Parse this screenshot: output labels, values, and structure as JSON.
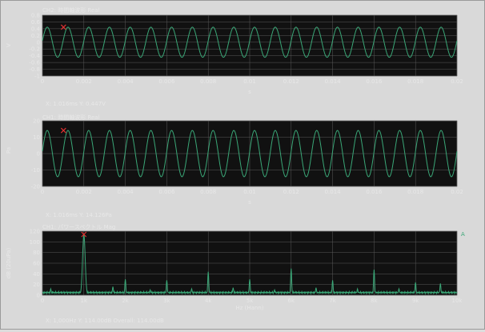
{
  "panels": [
    {
      "title": "CH2: 時間軸波形 Real",
      "ylabel": "V",
      "xlabel": "s",
      "cursor_readout": "X: 1.016ms  Y: 0.447V"
    },
    {
      "title": "CH1: 時間軸波形 Real",
      "ylabel": "Pa",
      "xlabel": "s",
      "cursor_readout": "X: 1.016ms  Y: 14.126Pa"
    },
    {
      "title": "CH1: パワースペクトル Mag",
      "ylabel": "dB (20uPa)",
      "xlabel": "Hz (Hann)",
      "cursor_readout": "X: 1,000Hz  Y: 114.00dB   Overall: 114.00dB",
      "top_right_marker": "A"
    }
  ],
  "colors": {
    "trace": "#3aa777",
    "cursor": "#e03030",
    "plot_bg": "#111111",
    "grid": "#5a5a5a",
    "text": "#e8e8e8"
  },
  "chart_data": [
    {
      "type": "line",
      "title": "CH2: 時間軸波形 Real",
      "xlabel": "s",
      "ylabel": "V",
      "xlim": [
        0,
        0.02
      ],
      "ylim": [
        -1,
        0.8
      ],
      "x_ticks": [
        "0",
        "0.002",
        "0.004",
        "0.006",
        "0.008",
        "0.01",
        "0.012",
        "0.014",
        "0.016",
        "0.018",
        "0.02"
      ],
      "y_ticks": [
        "0.8",
        "0.6",
        "0.4",
        "0.2",
        "0",
        "-0.2",
        "-0.4",
        "-0.6",
        "-0.8",
        "-1"
      ],
      "signal": {
        "shape": "sine",
        "frequency_hz": 1000,
        "amplitude": 0.447,
        "offset": 0
      },
      "cursor": {
        "x": 0.001016,
        "y": 0.447
      },
      "grid": true
    },
    {
      "type": "line",
      "title": "CH1: 時間軸波形 Real",
      "xlabel": "s",
      "ylabel": "Pa",
      "xlim": [
        0,
        0.02
      ],
      "ylim": [
        -20,
        20
      ],
      "x_ticks": [
        "0",
        "0.002",
        "0.004",
        "0.006",
        "0.008",
        "0.01",
        "0.012",
        "0.014",
        "0.016",
        "0.018",
        "0.02"
      ],
      "y_ticks": [
        "20",
        "10",
        "0",
        "-10",
        "-20"
      ],
      "signal": {
        "shape": "sine",
        "frequency_hz": 1000,
        "amplitude": 14.126,
        "offset": 0
      },
      "cursor": {
        "x": 0.001016,
        "y": 14.126
      },
      "grid": true
    },
    {
      "type": "line",
      "title": "CH1: パワースペクトル Mag",
      "xlabel": "Hz (Hann)",
      "ylabel": "dB (20uPa)",
      "xlim": [
        0,
        10000
      ],
      "ylim": [
        0,
        120
      ],
      "x_ticks": [
        "0",
        "1k",
        "2k",
        "3k",
        "4k",
        "5k",
        "6k",
        "7k",
        "8k",
        "9k",
        "10k"
      ],
      "y_ticks": [
        "120",
        "100",
        "80",
        "60",
        "40",
        "20",
        "0"
      ],
      "noise_floor_db": 5,
      "peaks": [
        {
          "x": 200,
          "y": 12
        },
        {
          "x": 1000,
          "y": 114
        },
        {
          "x": 1700,
          "y": 16
        },
        {
          "x": 2000,
          "y": 30
        },
        {
          "x": 2600,
          "y": 10
        },
        {
          "x": 3000,
          "y": 28
        },
        {
          "x": 3600,
          "y": 12
        },
        {
          "x": 4000,
          "y": 44
        },
        {
          "x": 4600,
          "y": 14
        },
        {
          "x": 5000,
          "y": 30
        },
        {
          "x": 5600,
          "y": 10
        },
        {
          "x": 6000,
          "y": 50
        },
        {
          "x": 6600,
          "y": 14
        },
        {
          "x": 7000,
          "y": 28
        },
        {
          "x": 7600,
          "y": 12
        },
        {
          "x": 8000,
          "y": 48
        },
        {
          "x": 8600,
          "y": 12
        },
        {
          "x": 9000,
          "y": 24
        },
        {
          "x": 9600,
          "y": 22
        }
      ],
      "cursor": {
        "x": 1000,
        "y": 114
      },
      "grid": true
    }
  ]
}
